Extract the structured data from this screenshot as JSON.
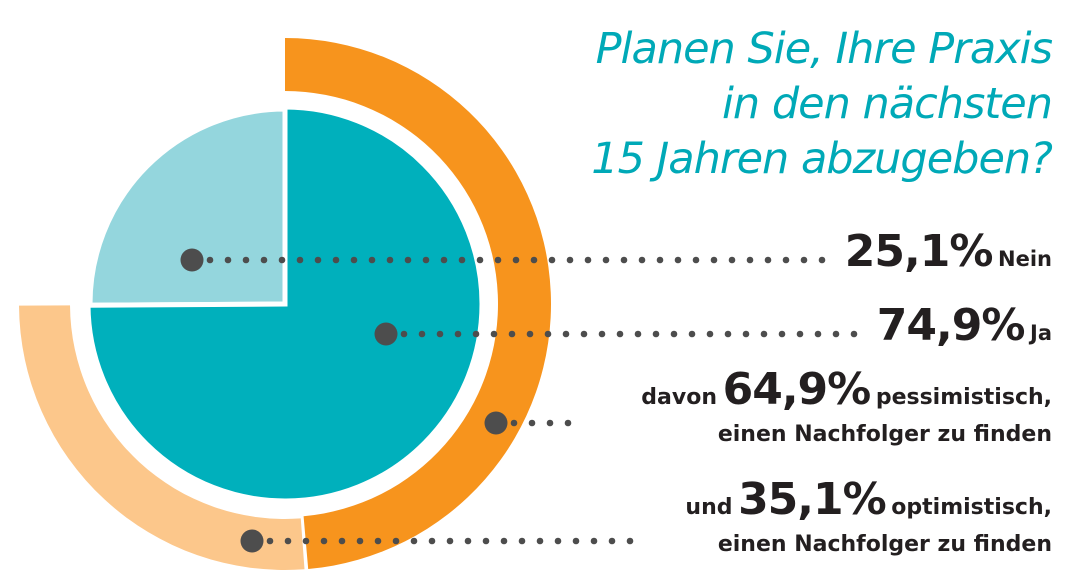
{
  "title_lines": [
    "Planen Sie, Ihre Praxis",
    "in den nächsten",
    "15 Jahren abzugeben?"
  ],
  "labels": {
    "nein": {
      "value": "25,1%",
      "text": "Nein"
    },
    "ja": {
      "value": "74,9%",
      "text": "Ja"
    },
    "pessimist": {
      "prefix": "davon",
      "value": "64,9%",
      "suffix": "pessimistisch,",
      "line2": "einen Nachfolger zu finden"
    },
    "optimist": {
      "prefix": "und",
      "value": "35,1%",
      "suffix": "optimistisch,",
      "line2": "einen Nachfolger zu finden"
    }
  },
  "chart_data": {
    "type": "pie",
    "title": "Planen Sie, Ihre Praxis in den nächsten 15 Jahren abzugeben?",
    "inner_pie": [
      {
        "name": "Nein",
        "value": 25.1,
        "color": "#94d6dd"
      },
      {
        "name": "Ja",
        "value": 74.9,
        "color": "#00b0bc"
      }
    ],
    "outer_ring_of_ja": [
      {
        "name": "pessimistisch, einen Nachfolger zu finden",
        "value": 64.9,
        "color": "#f7941d"
      },
      {
        "name": "optimistisch, einen Nachfolger zu finden",
        "value": 35.1,
        "color": "#fcc78b"
      }
    ],
    "leader_color": "#4d4d4d",
    "title_color": "#00a9b7"
  }
}
